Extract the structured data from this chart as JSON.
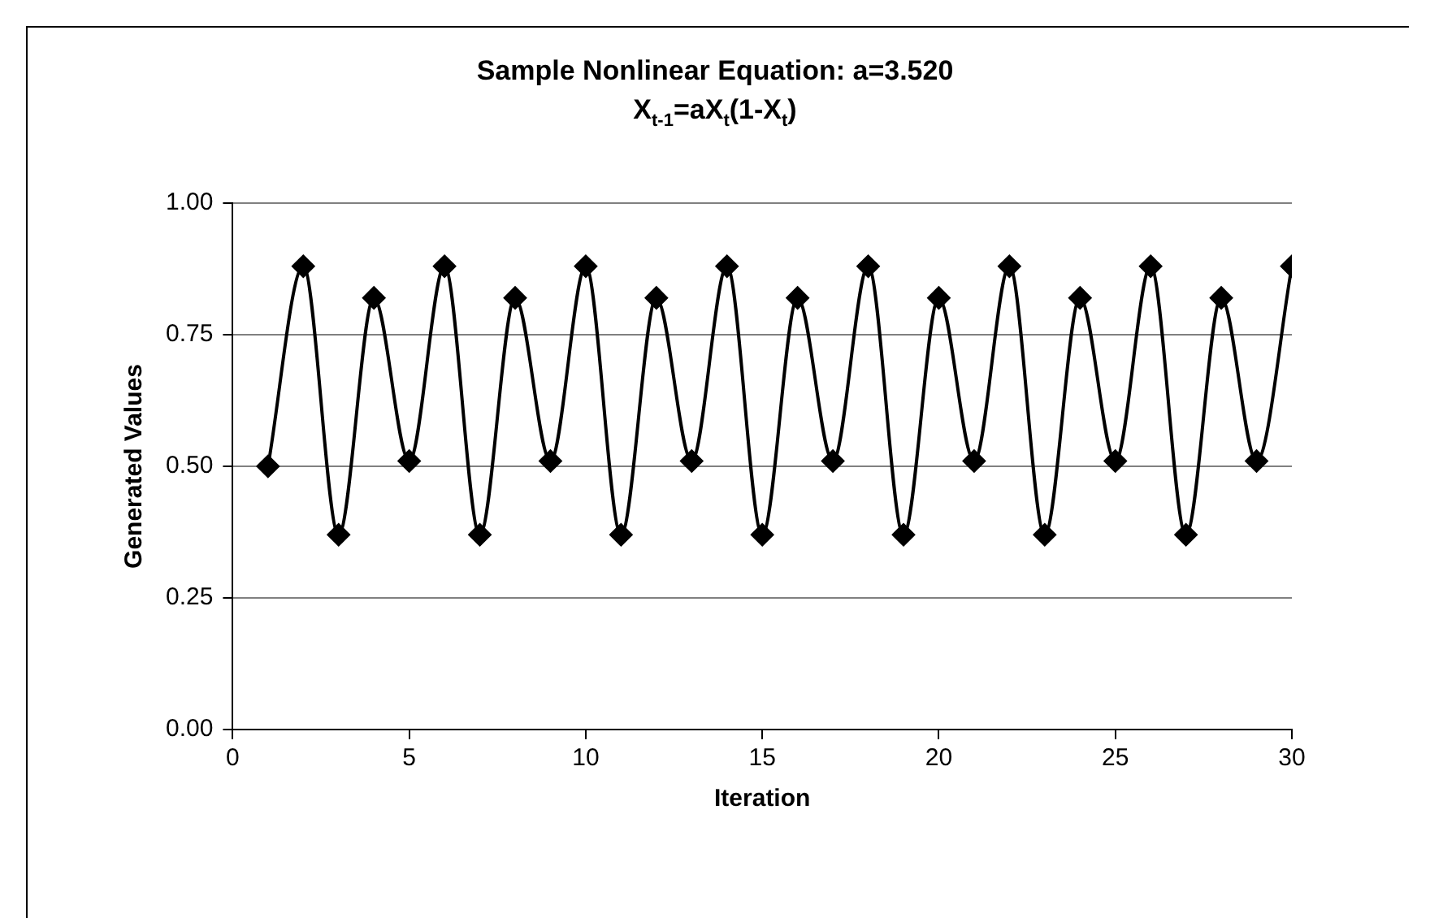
{
  "chart_data": {
    "type": "line",
    "title": "Sample Nonlinear Equation: a=3.520",
    "subtitle": "X$_{t-1}$=aX$_{t}$(1-X$_{t}$)",
    "xlabel": "Iteration",
    "ylabel": "Generated Values",
    "x": [
      1,
      2,
      3,
      4,
      5,
      6,
      7,
      8,
      9,
      10,
      11,
      12,
      13,
      14,
      15,
      16,
      17,
      18,
      19,
      20,
      21,
      22,
      23,
      24,
      25,
      26,
      27,
      28,
      29,
      30
    ],
    "series": [
      {
        "color": "#000000",
        "values": [
          0.5,
          0.88,
          0.37,
          0.82,
          0.51,
          0.88,
          0.37,
          0.82,
          0.51,
          0.88,
          0.37,
          0.82,
          0.51,
          0.88,
          0.37,
          0.82,
          0.51,
          0.88,
          0.37,
          0.82,
          0.51,
          0.88,
          0.37,
          0.82,
          0.51,
          0.88,
          0.37,
          0.82,
          0.51,
          0.88
        ]
      }
    ],
    "xlim": [
      0,
      30
    ],
    "xticks": [
      0,
      5,
      10,
      15,
      20,
      25,
      30
    ],
    "ylim": [
      0,
      1
    ],
    "yticks": [
      {
        "value": 0,
        "label": "0.00"
      },
      {
        "value": 0.25,
        "label": "0.25"
      },
      {
        "value": 0.5,
        "label": "0.50"
      },
      {
        "value": 0.75,
        "label": "0.75"
      },
      {
        "value": 1,
        "label": "1.00"
      }
    ],
    "grid": "y",
    "marker": "diamond",
    "line_style": "solid"
  }
}
